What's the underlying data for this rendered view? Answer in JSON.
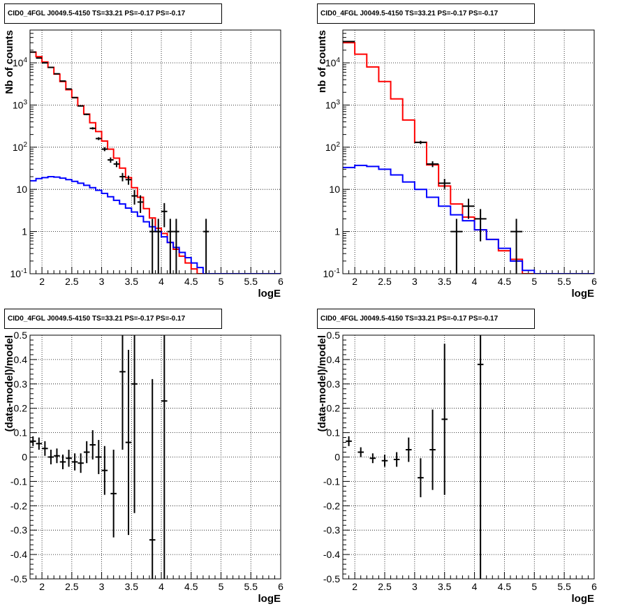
{
  "chart_data": [
    {
      "type": "line",
      "title": "CID0_4FGL J0049.5-4150 TS=33.21 PS=-0.17 PS=-0.17",
      "xlabel": "logE",
      "ylabel": "Nb of counts",
      "xlim": [
        1.8,
        6.0
      ],
      "ylim": [
        0.1,
        60000
      ],
      "yscale": "log",
      "xticks": [
        "2",
        "2.5",
        "3",
        "3.5",
        "4",
        "4.5",
        "5",
        "5.5",
        "6"
      ],
      "yticks": [
        "10^-1",
        "1",
        "10",
        "10^2",
        "10^3",
        "10^4"
      ],
      "grid": true,
      "bin_edges": [
        1.8,
        1.9,
        2.0,
        2.1,
        2.2,
        2.3,
        2.4,
        2.5,
        2.6,
        2.7,
        2.8,
        2.9,
        3.0,
        3.1,
        3.2,
        3.3,
        3.4,
        3.5,
        3.6,
        3.7,
        3.8,
        3.9,
        4.0,
        4.1,
        4.2,
        4.3,
        4.4,
        4.5,
        4.6,
        4.7,
        4.8,
        4.9,
        5.0,
        5.1,
        5.2,
        5.3,
        5.4,
        5.5,
        5.6,
        5.7,
        5.8,
        5.9,
        6.0
      ],
      "series": [
        {
          "color": "#ff0000",
          "values": [
            18000,
            14000,
            10500,
            7800,
            5400,
            3600,
            2300,
            1500,
            960,
            610,
            380,
            235,
            140,
            90,
            55,
            32,
            19,
            11,
            6.5,
            3.5,
            2.1,
            1.2,
            0.9,
            0.55,
            0.38,
            0.26,
            0.18,
            0.13,
            0.1,
            0.1,
            0.1,
            0.1,
            0.1,
            0.1,
            0.1,
            0.1,
            0.1,
            0.1,
            0.1,
            0.1,
            0.1,
            0.1
          ]
        },
        {
          "color": "#0000ff",
          "values": [
            16,
            18,
            19,
            20,
            19.5,
            18.5,
            17,
            15.5,
            14,
            12.5,
            11,
            9.5,
            8,
            6.7,
            5.5,
            4.5,
            3.6,
            2.9,
            2.3,
            1.7,
            1.3,
            1.0,
            0.75,
            0.55,
            0.42,
            0.32,
            0.24,
            0.18,
            0.14,
            0.1,
            0.1,
            0.1,
            0.1,
            0.1,
            0.1,
            0.1,
            0.1,
            0.1,
            0.1,
            0.1,
            0.1,
            0.1
          ]
        },
        {
          "color": "#000000",
          "kind": "points",
          "points": [
            {
              "x": 1.85,
              "y": 18000
            },
            {
              "x": 1.95,
              "y": 13000
            },
            {
              "x": 2.05,
              "y": 10000
            },
            {
              "x": 2.15,
              "y": 7800
            },
            {
              "x": 2.25,
              "y": 5500
            },
            {
              "x": 2.35,
              "y": 3700
            },
            {
              "x": 2.45,
              "y": 2400
            },
            {
              "x": 2.55,
              "y": 1500
            },
            {
              "x": 2.65,
              "y": 950
            },
            {
              "x": 2.75,
              "y": 600
            },
            {
              "x": 2.85,
              "y": 280
            },
            {
              "x": 2.95,
              "y": 160
            },
            {
              "x": 3.05,
              "y": 90
            },
            {
              "x": 3.15,
              "y": 50
            },
            {
              "x": 3.25,
              "y": 40
            },
            {
              "x": 3.35,
              "y": 20
            },
            {
              "x": 3.45,
              "y": 17
            },
            {
              "x": 3.55,
              "y": 7
            },
            {
              "x": 3.65,
              "y": 5
            },
            {
              "x": 3.85,
              "y": 1
            },
            {
              "x": 3.95,
              "y": 1
            },
            {
              "x": 4.05,
              "y": 3
            },
            {
              "x": 4.15,
              "y": 1
            },
            {
              "x": 4.25,
              "y": 1
            },
            {
              "x": 4.75,
              "y": 1
            }
          ]
        }
      ]
    },
    {
      "type": "line",
      "title": "CID0_4FGL J0049.5-4150 TS=33.21 PS=-0.17 PS=-0.17",
      "xlabel": "logE",
      "ylabel": "nb of counts",
      "xlim": [
        1.8,
        6.0
      ],
      "ylim": [
        0.1,
        60000
      ],
      "yscale": "log",
      "xticks": [
        "2",
        "2.5",
        "3",
        "3.5",
        "4",
        "4.5",
        "5",
        "5.5",
        "6"
      ],
      "yticks": [
        "10^-1",
        "1",
        "10",
        "10^2",
        "10^3",
        "10^4"
      ],
      "grid": true,
      "bin_edges": [
        1.8,
        2.0,
        2.2,
        2.4,
        2.6,
        2.8,
        3.0,
        3.2,
        3.4,
        3.6,
        3.8,
        4.0,
        4.2,
        4.4,
        4.6,
        4.8,
        5.0,
        5.2,
        5.4,
        5.6,
        5.8,
        6.0
      ],
      "series": [
        {
          "color": "#ff0000",
          "values": [
            30000,
            16000,
            8000,
            3600,
            1400,
            440,
            130,
            38,
            12,
            4.5,
            2.2,
            1.1,
            0.65,
            0.35,
            0.22,
            0.1,
            0.1,
            0.1,
            0.1,
            0.1,
            0.1
          ]
        },
        {
          "color": "#0000ff",
          "values": [
            33,
            37,
            35,
            30,
            22,
            15,
            10,
            6.5,
            4,
            2.5,
            1.8,
            1.1,
            0.65,
            0.4,
            0.2,
            0.12,
            0.1,
            0.1,
            0.1,
            0.1,
            0.1
          ]
        },
        {
          "color": "#000000",
          "kind": "points",
          "points": [
            {
              "x": 1.9,
              "y": 32000
            },
            {
              "x": 3.1,
              "y": 130
            },
            {
              "x": 3.3,
              "y": 40
            },
            {
              "x": 3.5,
              "y": 14
            },
            {
              "x": 3.7,
              "y": 1
            },
            {
              "x": 3.9,
              "y": 4
            },
            {
              "x": 4.1,
              "y": 2
            },
            {
              "x": 4.7,
              "y": 1
            }
          ]
        }
      ]
    },
    {
      "type": "scatter",
      "title": "CID0_4FGL J0049.5-4150 TS=33.21 PS=-0.17 PS=-0.17",
      "xlabel": "logE",
      "ylabel": "(data-model)/model",
      "xlim": [
        1.8,
        6.0
      ],
      "ylim": [
        -0.5,
        0.5
      ],
      "xticks": [
        "2",
        "2.5",
        "3",
        "3.5",
        "4",
        "4.5",
        "5",
        "5.5",
        "6"
      ],
      "yticks": [
        "-0.5",
        "-0.4",
        "-0.3",
        "-0.2",
        "-0.1",
        "0",
        "0.1",
        "0.2",
        "0.3",
        "0.4",
        "0.5"
      ],
      "grid": true,
      "series": [
        {
          "color": "#000000",
          "points": [
            {
              "x": 1.85,
              "y": 0.065,
              "err": 0.02
            },
            {
              "x": 1.95,
              "y": 0.055,
              "err": 0.025
            },
            {
              "x": 2.05,
              "y": 0.035,
              "err": 0.03
            },
            {
              "x": 2.15,
              "y": 0.0,
              "err": 0.03
            },
            {
              "x": 2.25,
              "y": 0.005,
              "err": 0.03
            },
            {
              "x": 2.35,
              "y": -0.02,
              "err": 0.03
            },
            {
              "x": 2.45,
              "y": -0.005,
              "err": 0.035
            },
            {
              "x": 2.55,
              "y": -0.02,
              "err": 0.035
            },
            {
              "x": 2.65,
              "y": -0.025,
              "err": 0.04
            },
            {
              "x": 2.75,
              "y": 0.02,
              "err": 0.045
            },
            {
              "x": 2.85,
              "y": 0.05,
              "err": 0.06
            },
            {
              "x": 2.95,
              "y": 0.0,
              "err": 0.07
            },
            {
              "x": 3.05,
              "y": -0.055,
              "err": 0.1
            },
            {
              "x": 3.2,
              "y": -0.15,
              "err": 0.18
            },
            {
              "x": 3.35,
              "y": 0.35,
              "err": 0.32
            },
            {
              "x": 3.45,
              "y": 0.06,
              "err": 0.38
            },
            {
              "x": 3.55,
              "y": 0.3,
              "err": 0.53
            },
            {
              "x": 3.85,
              "y": -0.34,
              "err": 0.66
            },
            {
              "x": 4.05,
              "y": 0.23,
              "err": 1.0
            }
          ]
        }
      ]
    },
    {
      "type": "scatter",
      "title": "CID0_4FGL J0049.5-4150 TS=33.21 PS=-0.17 PS=-0.17",
      "xlabel": "logE",
      "ylabel": "(data-model)/model",
      "xlim": [
        1.8,
        6.0
      ],
      "ylim": [
        -0.5,
        0.5
      ],
      "xticks": [
        "2",
        "2.5",
        "3",
        "3.5",
        "4",
        "4.5",
        "5",
        "5.5",
        "6"
      ],
      "yticks": [
        "-0.5",
        "-0.4",
        "-0.3",
        "-0.2",
        "-0.1",
        "0",
        "0.1",
        "0.2",
        "0.3",
        "0.4",
        "0.5"
      ],
      "grid": true,
      "series": [
        {
          "color": "#000000",
          "points": [
            {
              "x": 1.9,
              "y": 0.065,
              "err": 0.02
            },
            {
              "x": 2.1,
              "y": 0.02,
              "err": 0.02
            },
            {
              "x": 2.3,
              "y": -0.005,
              "err": 0.02
            },
            {
              "x": 2.5,
              "y": -0.015,
              "err": 0.025
            },
            {
              "x": 2.7,
              "y": -0.01,
              "err": 0.03
            },
            {
              "x": 2.9,
              "y": 0.03,
              "err": 0.05
            },
            {
              "x": 3.1,
              "y": -0.085,
              "err": 0.08
            },
            {
              "x": 3.3,
              "y": 0.03,
              "err": 0.165
            },
            {
              "x": 3.5,
              "y": 0.155,
              "err": 0.31
            },
            {
              "x": 4.1,
              "y": 0.38,
              "err": 1.0
            }
          ]
        }
      ]
    }
  ]
}
